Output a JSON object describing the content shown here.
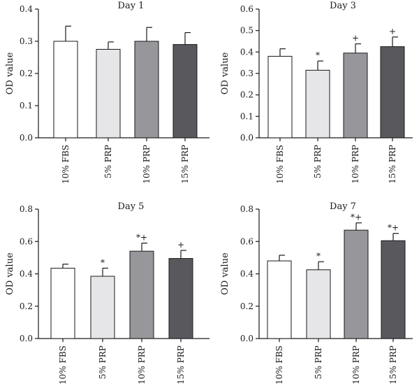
{
  "chart_data": [
    {
      "type": "bar",
      "title": "Day 1",
      "ylabel": "OD value",
      "ylim": [
        0,
        0.4
      ],
      "yticks": [
        "0.0",
        "0.1",
        "0.2",
        "0.3",
        "0.4"
      ],
      "categories": [
        "10% FBS",
        "5% PRP",
        "10% PRP",
        "15% PRP"
      ],
      "values": [
        0.3,
        0.275,
        0.3,
        0.29
      ],
      "errors": [
        0.047,
        0.023,
        0.043,
        0.037
      ],
      "annotations": [
        "",
        "",
        "",
        ""
      ],
      "colors": [
        "#ffffff",
        "#e6e6e8",
        "#97979b",
        "#58585d"
      ]
    },
    {
      "type": "bar",
      "title": "Day 3",
      "ylabel": "OD value",
      "ylim": [
        0,
        0.6
      ],
      "yticks": [
        "0.0",
        "0.1",
        "0.2",
        "0.3",
        "0.4",
        "0.5",
        "0.6"
      ],
      "categories": [
        "10% FBS",
        "5% PRP",
        "10% PRP",
        "15% PRP"
      ],
      "values": [
        0.38,
        0.315,
        0.395,
        0.425
      ],
      "errors": [
        0.035,
        0.043,
        0.043,
        0.045
      ],
      "annotations": [
        "",
        "*",
        "+",
        "+"
      ],
      "colors": [
        "#ffffff",
        "#e6e6e8",
        "#97979b",
        "#58585d"
      ]
    },
    {
      "type": "bar",
      "title": "Day 5",
      "ylabel": "OD value",
      "ylim": [
        0,
        0.8
      ],
      "yticks": [
        "0.0",
        "0.2",
        "0.4",
        "0.6",
        "0.8"
      ],
      "categories": [
        "10% FBS",
        "5% PRP",
        "10% PRP",
        "15% PRP"
      ],
      "values": [
        0.435,
        0.385,
        0.54,
        0.495
      ],
      "errors": [
        0.025,
        0.05,
        0.05,
        0.05
      ],
      "annotations": [
        "",
        "*",
        "*+",
        "+"
      ],
      "colors": [
        "#ffffff",
        "#e6e6e8",
        "#97979b",
        "#58585d"
      ]
    },
    {
      "type": "bar",
      "title": "Day 7",
      "ylabel": "OD value",
      "ylim": [
        0,
        0.8
      ],
      "yticks": [
        "0.0",
        "0.2",
        "0.4",
        "0.6",
        "0.8"
      ],
      "categories": [
        "10% FBS",
        "5% PRP",
        "10% PRP",
        "15% PRP"
      ],
      "values": [
        0.48,
        0.425,
        0.67,
        0.605
      ],
      "errors": [
        0.035,
        0.05,
        0.045,
        0.045
      ],
      "annotations": [
        "",
        "*",
        "*+",
        "*+"
      ],
      "colors": [
        "#ffffff",
        "#e6e6e8",
        "#97979b",
        "#58585d"
      ]
    }
  ]
}
